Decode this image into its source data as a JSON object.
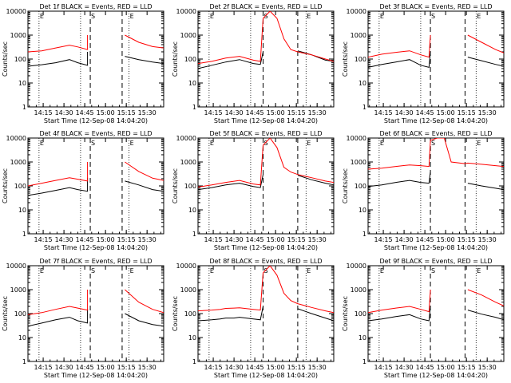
{
  "panels": [
    {
      "title": "Det 1f BLACK = Events, RED = LLD",
      "ylabel": "Counts/sec",
      "xlabel": "Start Time (12-Sep-08 14:04:20)",
      "xticks": [
        "14:15",
        "14:30",
        "14:45",
        "15:00",
        "15:15",
        "15:30"
      ],
      "yticks": [
        "1",
        "10",
        "100",
        "1000",
        "10000"
      ],
      "markers": [
        "E",
        "S",
        "E"
      ]
    },
    {
      "title": "Det 2f BLACK = Events, RED = LLD",
      "ylabel": "Counts/sec",
      "xlabel": "Start Time (12-Sep-08 14:04:20)",
      "xticks": [
        "14:15",
        "14:30",
        "14:45",
        "15:00",
        "15:15",
        "15:30"
      ],
      "yticks": [
        "1",
        "10",
        "100",
        "1000",
        "10000"
      ],
      "markers": [
        "E",
        "S",
        "E"
      ]
    },
    {
      "title": "Det 3f BLACK = Events, RED = LLD",
      "ylabel": "Counts/sec",
      "xlabel": "Start Time (12-Sep-08 14:04:20)",
      "xticks": [
        "14:15",
        "14:30",
        "14:45",
        "15:00",
        "15:15",
        "15:30"
      ],
      "yticks": [
        "1",
        "10",
        "100",
        "1000",
        "10000"
      ],
      "markers": [
        "E",
        "S",
        "E"
      ]
    },
    {
      "title": "Det 4f BLACK = Events, RED = LLD",
      "ylabel": "Counts/sec",
      "xlabel": "Start Time (12-Sep-08 14:04:20)",
      "xticks": [
        "14:15",
        "14:30",
        "14:45",
        "15:00",
        "15:15",
        "15:30"
      ],
      "yticks": [
        "1",
        "10",
        "100",
        "1000",
        "10000"
      ],
      "markers": [
        "E",
        "S",
        "E"
      ]
    },
    {
      "title": "Det 5f BLACK = Events, RED = LLD",
      "ylabel": "Counts/sec",
      "xlabel": "Start Time (12-Sep-08 14:04:20)",
      "xticks": [
        "14:15",
        "14:30",
        "14:45",
        "15:00",
        "15:15",
        "15:30"
      ],
      "yticks": [
        "1",
        "10",
        "100",
        "1000",
        "10000"
      ],
      "markers": [
        "E",
        "S",
        "E"
      ]
    },
    {
      "title": "Det 6f BLACK = Events, RED = LLD",
      "ylabel": "Counts/sec",
      "xlabel": "Start Time (12-Sep-08 14:04:20)",
      "xticks": [
        "14:15",
        "14:30",
        "14:45",
        "15:00",
        "15:15",
        "15:30"
      ],
      "yticks": [
        "1",
        "10",
        "100",
        "1000",
        "10000"
      ],
      "markers": [
        "E",
        "S",
        "E"
      ]
    },
    {
      "title": "Det 7f BLACK = Events, RED = LLD",
      "ylabel": "Counts/sec",
      "xlabel": "Start Time (12-Sep-08 14:04:20)",
      "xticks": [
        "14:15",
        "14:30",
        "14:45",
        "15:00",
        "15:15",
        "15:30"
      ],
      "yticks": [
        "1",
        "10",
        "100",
        "1000",
        "10000"
      ],
      "markers": [
        "E",
        "S",
        "E"
      ]
    },
    {
      "title": "Det 8f BLACK = Events, RED = LLD",
      "ylabel": "Counts/sec",
      "xlabel": "Start Time (12-Sep-08 14:04:20)",
      "xticks": [
        "14:15",
        "14:30",
        "14:45",
        "15:00",
        "15:15",
        "15:30"
      ],
      "yticks": [
        "1",
        "10",
        "100",
        "1000",
        "10000"
      ],
      "markers": [
        "E",
        "S",
        "E"
      ]
    },
    {
      "title": "Det 9f BLACK = Events, RED = LLD",
      "ylabel": "Counts/sec",
      "xlabel": "Start Time (12-Sep-08 14:04:20)",
      "xticks": [
        "14:15",
        "14:30",
        "14:45",
        "15:00",
        "15:15",
        "15:30"
      ],
      "yticks": [
        "1",
        "10",
        "100",
        "1000",
        "10000"
      ],
      "markers": [
        "E",
        "S",
        "E"
      ]
    }
  ],
  "colors": {
    "events": "#000000",
    "lld": "#ff0000",
    "axes": "#000000",
    "background": "#ffffff"
  },
  "chart_data": [
    {
      "type": "line",
      "title": "Det 1f BLACK = Events, RED = LLD",
      "xlabel": "Start Time (12-Sep-08 14:04:20)",
      "ylabel": "Counts/sec",
      "y_scale": "log",
      "xlim": [
        "14:04",
        "15:42"
      ],
      "ylim": [
        1,
        10000
      ],
      "grid": false,
      "dotted_lines": [
        "14:12",
        "14:42",
        "15:17"
      ],
      "dashed_lines": [
        "14:49",
        "15:12"
      ],
      "x": [
        "14:04",
        "14:14",
        "14:24",
        "14:34",
        "14:40",
        "14:47",
        "14:47",
        "14:49",
        "15:12",
        "15:14",
        "15:24",
        "15:34",
        "15:42"
      ],
      "series": [
        {
          "name": "Events",
          "color": "#000000",
          "values": [
            50,
            58,
            70,
            95,
            70,
            55,
            200,
            null,
            null,
            130,
            95,
            75,
            65
          ]
        },
        {
          "name": "LLD",
          "color": "#ff0000",
          "values": [
            200,
            220,
            290,
            380,
            320,
            250,
            1000,
            null,
            null,
            1000,
            500,
            330,
            290
          ]
        }
      ]
    },
    {
      "type": "line",
      "title": "Det 2f BLACK = Events, RED = LLD",
      "xlabel": "Start Time (12-Sep-08 14:04:20)",
      "ylabel": "Counts/sec",
      "y_scale": "log",
      "xlim": [
        "14:04",
        "15:42"
      ],
      "ylim": [
        1,
        10000
      ],
      "grid": false,
      "dotted_lines": [
        "14:12",
        "14:42",
        "15:22"
      ],
      "dashed_lines": [
        "14:51",
        "15:16"
      ],
      "x": [
        "14:04",
        "14:14",
        "14:24",
        "14:34",
        "14:44",
        "14:49",
        "14:51",
        "14:56",
        "15:01",
        "15:06",
        "15:11",
        "15:16",
        "15:26",
        "15:36",
        "15:42"
      ],
      "series": [
        {
          "name": "Events",
          "color": "#000000",
          "values": [
            40,
            55,
            75,
            95,
            65,
            60,
            200,
            null,
            null,
            null,
            null,
            220,
            150,
            90,
            80
          ]
        },
        {
          "name": "LLD",
          "color": "#ff0000",
          "values": [
            65,
            80,
            110,
            130,
            90,
            80,
            5000,
            10000,
            5000,
            700,
            250,
            200,
            150,
            100,
            80
          ]
        }
      ]
    },
    {
      "type": "line",
      "title": "Det 3f BLACK = Events, RED = LLD",
      "xlabel": "Start Time (12-Sep-08 14:04:20)",
      "ylabel": "Counts/sec",
      "y_scale": "log",
      "xlim": [
        "14:04",
        "15:42"
      ],
      "ylim": [
        1,
        10000
      ],
      "grid": false,
      "dotted_lines": [
        "14:12",
        "14:42",
        "15:22"
      ],
      "dashed_lines": [
        "14:49",
        "15:14"
      ],
      "x": [
        "14:04",
        "14:14",
        "14:24",
        "14:34",
        "14:42",
        "14:48",
        "14:49",
        "15:14",
        "15:16",
        "15:26",
        "15:36",
        "15:42"
      ],
      "series": [
        {
          "name": "Events",
          "color": "#000000",
          "values": [
            45,
            60,
            75,
            95,
            55,
            45,
            200,
            null,
            120,
            85,
            60,
            50
          ]
        },
        {
          "name": "LLD",
          "color": "#ff0000",
          "values": [
            120,
            160,
            190,
            220,
            150,
            120,
            1000,
            null,
            1000,
            500,
            250,
            180
          ]
        }
      ]
    },
    {
      "type": "line",
      "title": "Det 4f BLACK = Events, RED = LLD",
      "xlabel": "Start Time (12-Sep-08 14:04:20)",
      "ylabel": "Counts/sec",
      "y_scale": "log",
      "xlim": [
        "14:04",
        "15:42"
      ],
      "ylim": [
        1,
        10000
      ],
      "grid": false,
      "dotted_lines": [
        "14:12",
        "14:42",
        "15:17"
      ],
      "dashed_lines": [
        "14:49",
        "15:12"
      ],
      "x": [
        "14:04",
        "14:14",
        "14:24",
        "14:34",
        "14:40",
        "14:47",
        "14:47",
        "14:49",
        "15:12",
        "15:14",
        "15:24",
        "15:34",
        "15:42"
      ],
      "series": [
        {
          "name": "Events",
          "color": "#000000",
          "values": [
            40,
            50,
            65,
            85,
            70,
            60,
            220,
            null,
            null,
            160,
            110,
            70,
            60
          ]
        },
        {
          "name": "LLD",
          "color": "#ff0000",
          "values": [
            100,
            130,
            170,
            220,
            190,
            160,
            1000,
            null,
            null,
            1000,
            400,
            210,
            170
          ]
        }
      ]
    },
    {
      "type": "line",
      "title": "Det 5f BLACK = Events, RED = LLD",
      "xlabel": "Start Time (12-Sep-08 14:04:20)",
      "ylabel": "Counts/sec",
      "y_scale": "log",
      "xlim": [
        "14:04",
        "15:42"
      ],
      "ylim": [
        1,
        10000
      ],
      "grid": false,
      "dotted_lines": [
        "14:12",
        "14:42",
        "15:22"
      ],
      "dashed_lines": [
        "14:51",
        "15:16"
      ],
      "x": [
        "14:04",
        "14:14",
        "14:24",
        "14:34",
        "14:44",
        "14:49",
        "14:51",
        "14:56",
        "15:01",
        "15:06",
        "15:11",
        "15:16",
        "15:26",
        "15:36",
        "15:42"
      ],
      "series": [
        {
          "name": "Events",
          "color": "#000000",
          "values": [
            70,
            85,
            110,
            130,
            95,
            85,
            300,
            null,
            null,
            null,
            null,
            280,
            180,
            130,
            110
          ]
        },
        {
          "name": "LLD",
          "color": "#ff0000",
          "values": [
            90,
            110,
            140,
            170,
            120,
            110,
            5000,
            10000,
            4000,
            600,
            380,
            300,
            220,
            160,
            140
          ]
        }
      ]
    },
    {
      "type": "line",
      "title": "Det 6f BLACK = Events, RED = LLD",
      "xlabel": "Start Time (12-Sep-08 14:04:20)",
      "ylabel": "Counts/sec",
      "y_scale": "log",
      "xlim": [
        "14:04",
        "15:42"
      ],
      "ylim": [
        1,
        10000
      ],
      "grid": false,
      "dotted_lines": [
        "14:12",
        "14:42",
        "15:22"
      ],
      "dashed_lines": [
        "14:49",
        "15:14"
      ],
      "x": [
        "14:04",
        "14:14",
        "14:24",
        "14:34",
        "14:42",
        "14:48",
        "14:49",
        "14:54",
        "14:59",
        "15:04",
        "15:14",
        "15:16",
        "15:26",
        "15:36",
        "15:42"
      ],
      "series": [
        {
          "name": "Events",
          "color": "#000000",
          "values": [
            95,
            110,
            140,
            170,
            140,
            130,
            400,
            null,
            null,
            null,
            null,
            130,
            100,
            80,
            70
          ]
        },
        {
          "name": "LLD",
          "color": "#ff0000",
          "values": [
            500,
            550,
            650,
            750,
            700,
            650,
            8000,
            10000,
            10000,
            1000,
            850,
            900,
            800,
            700,
            650
          ]
        }
      ]
    },
    {
      "type": "line",
      "title": "Det 7f BLACK = Events, RED = LLD",
      "xlabel": "Start Time (12-Sep-08 14:04:20)",
      "ylabel": "Counts/sec",
      "y_scale": "log",
      "xlim": [
        "14:04",
        "15:42"
      ],
      "ylim": [
        1,
        10000
      ],
      "grid": false,
      "dotted_lines": [
        "14:12",
        "14:42",
        "15:17"
      ],
      "dashed_lines": [
        "14:49",
        "15:12"
      ],
      "x": [
        "14:04",
        "14:14",
        "14:24",
        "14:34",
        "14:40",
        "14:47",
        "14:47",
        "14:49",
        "15:12",
        "15:14",
        "15:24",
        "15:34",
        "15:42"
      ],
      "series": [
        {
          "name": "Events",
          "color": "#000000",
          "values": [
            30,
            40,
            55,
            70,
            50,
            40,
            160,
            null,
            null,
            100,
            50,
            35,
            30
          ]
        },
        {
          "name": "LLD",
          "color": "#ff0000",
          "values": [
            90,
            110,
            150,
            200,
            170,
            140,
            1000,
            null,
            null,
            1000,
            300,
            150,
            110
          ]
        }
      ]
    },
    {
      "type": "line",
      "title": "Det 8f BLACK = Events, RED = LLD",
      "xlabel": "Start Time (12-Sep-08 14:04:20)",
      "ylabel": "Counts/sec",
      "y_scale": "log",
      "xlim": [
        "14:04",
        "15:42"
      ],
      "ylim": [
        1,
        10000
      ],
      "grid": false,
      "dotted_lines": [
        "14:12",
        "14:42",
        "15:22"
      ],
      "dashed_lines": [
        "14:51",
        "15:16"
      ],
      "x": [
        "14:04",
        "14:14",
        "14:20",
        "14:24",
        "14:30",
        "14:34",
        "14:44",
        "14:49",
        "14:51",
        "14:56",
        "15:01",
        "15:06",
        "15:11",
        "15:16",
        "15:26",
        "15:36",
        "15:42"
      ],
      "series": [
        {
          "name": "Events",
          "color": "#000000",
          "values": [
            50,
            55,
            60,
            65,
            65,
            70,
            60,
            55,
            200,
            null,
            null,
            null,
            null,
            160,
            100,
            65,
            50
          ]
        },
        {
          "name": "LLD",
          "color": "#ff0000",
          "values": [
            130,
            140,
            150,
            165,
            170,
            175,
            150,
            140,
            5000,
            10000,
            4000,
            700,
            350,
            260,
            180,
            130,
            110
          ]
        }
      ]
    },
    {
      "type": "line",
      "title": "Det 9f BLACK = Events, RED = LLD",
      "xlabel": "Start Time (12-Sep-08 14:04:20)",
      "ylabel": "Counts/sec",
      "y_scale": "log",
      "xlim": [
        "14:04",
        "15:42"
      ],
      "ylim": [
        1,
        10000
      ],
      "grid": false,
      "dotted_lines": [
        "14:12",
        "14:42",
        "15:22"
      ],
      "dashed_lines": [
        "14:49",
        "15:14"
      ],
      "x": [
        "14:04",
        "14:14",
        "14:24",
        "14:34",
        "14:42",
        "14:48",
        "14:49",
        "15:14",
        "15:16",
        "15:26",
        "15:36",
        "15:42"
      ],
      "series": [
        {
          "name": "Events",
          "color": "#000000",
          "values": [
            50,
            60,
            75,
            90,
            60,
            50,
            200,
            null,
            140,
            95,
            70,
            55
          ]
        },
        {
          "name": "LLD",
          "color": "#ff0000",
          "values": [
            110,
            140,
            170,
            200,
            150,
            120,
            1000,
            null,
            1000,
            600,
            300,
            210
          ]
        }
      ]
    }
  ]
}
